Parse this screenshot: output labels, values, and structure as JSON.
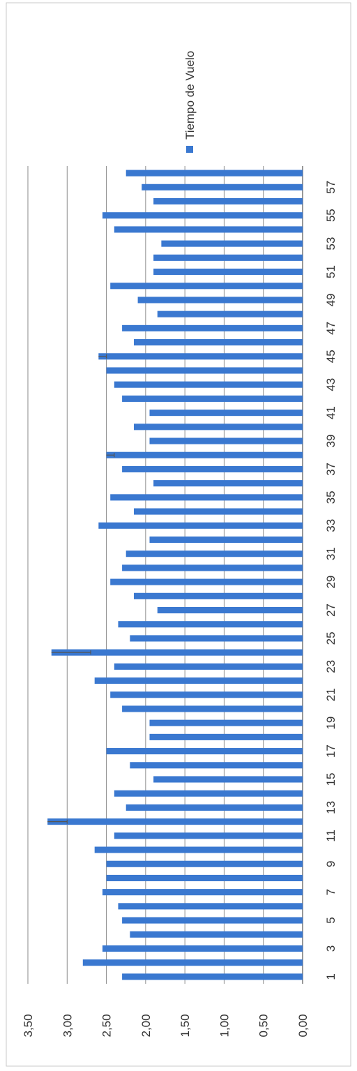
{
  "chart_data": {
    "type": "bar",
    "orientation": "rotated",
    "title": "",
    "xlabel": "",
    "ylabel": "",
    "ylim": [
      0,
      3.5
    ],
    "yticks": [
      "0,00",
      "0,50",
      "1,00",
      "1,50",
      "2,00",
      "2,50",
      "3,00",
      "3,50"
    ],
    "xtick_labels": [
      "1",
      "3",
      "5",
      "7",
      "9",
      "11",
      "13",
      "15",
      "17",
      "19",
      "21",
      "23",
      "25",
      "27",
      "29",
      "31",
      "33",
      "35",
      "37",
      "39",
      "41",
      "43",
      "45",
      "47",
      "49",
      "51",
      "53",
      "55",
      "57"
    ],
    "grid": true,
    "legend": {
      "position": "right",
      "entries": [
        "Tiempo de Vuelo"
      ]
    },
    "series": [
      {
        "name": "Tiempo de Vuelo",
        "color": "#3a78d0",
        "categories": [
          1,
          2,
          3,
          4,
          5,
          6,
          7,
          8,
          9,
          10,
          11,
          12,
          13,
          14,
          15,
          16,
          17,
          18,
          19,
          20,
          21,
          22,
          23,
          24,
          25,
          26,
          27,
          28,
          29,
          30,
          31,
          32,
          33,
          34,
          35,
          36,
          37,
          38,
          39,
          40,
          41,
          42,
          43,
          44,
          45,
          46,
          47,
          48,
          49,
          50,
          51,
          52,
          53,
          54,
          55,
          56,
          57,
          58
        ],
        "values": [
          2.3,
          2.8,
          2.55,
          2.2,
          2.3,
          2.35,
          2.55,
          2.5,
          2.5,
          2.65,
          2.4,
          3.25,
          2.25,
          2.4,
          1.9,
          2.2,
          2.5,
          1.95,
          1.95,
          2.3,
          2.45,
          2.65,
          2.4,
          3.2,
          2.2,
          2.35,
          1.85,
          2.15,
          2.45,
          2.3,
          2.25,
          1.95,
          2.6,
          2.15,
          2.45,
          1.9,
          2.3,
          2.5,
          1.95,
          2.15,
          1.95,
          2.3,
          2.4,
          2.5,
          2.6,
          2.15,
          2.3,
          1.85,
          2.1,
          2.45,
          1.9,
          1.9,
          1.8,
          2.4,
          2.55,
          1.9,
          2.05,
          2.25
        ],
        "error": [
          0,
          0,
          0,
          0,
          0,
          0,
          0,
          0,
          0,
          0,
          0,
          0.25,
          0,
          0,
          0,
          0,
          0,
          0,
          0,
          0,
          0,
          0,
          0,
          0.5,
          0,
          0,
          0,
          0,
          0,
          0,
          0,
          0,
          0,
          0,
          0,
          0,
          0,
          0.1,
          0,
          0,
          0,
          0,
          0,
          0,
          0.1,
          0,
          0,
          0,
          0,
          0,
          0,
          0,
          0,
          0,
          0,
          0,
          0,
          0
        ]
      }
    ]
  }
}
